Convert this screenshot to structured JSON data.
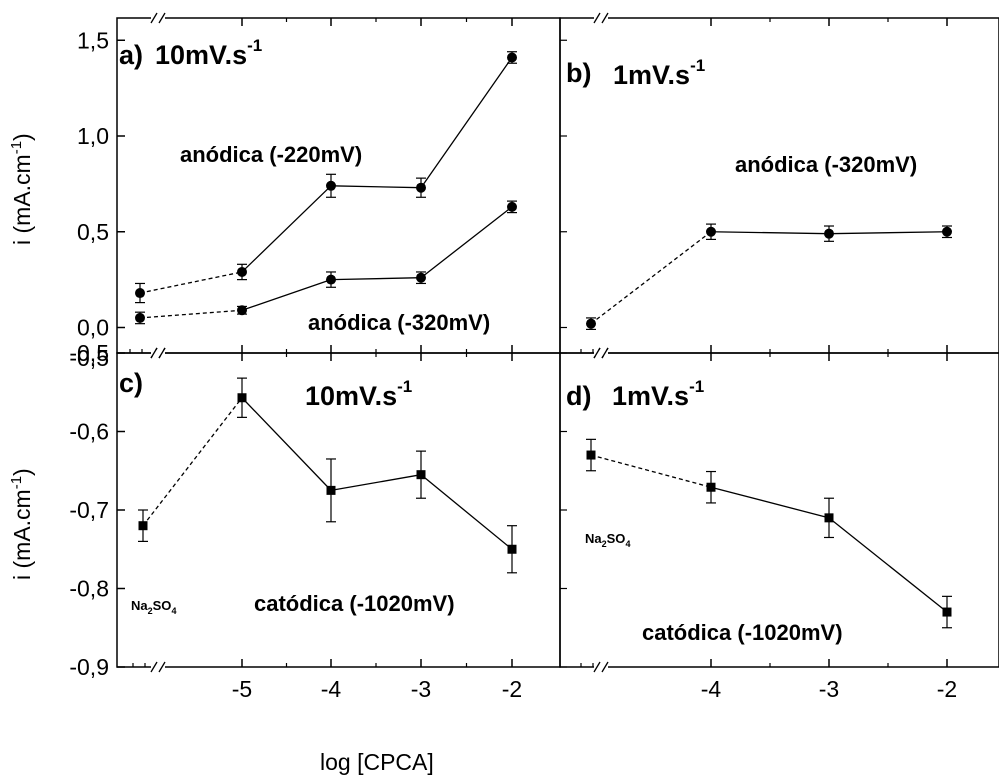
{
  "x_axis_label": "log [CPCA]",
  "y_axis_label_main": "i (mA.cm",
  "y_axis_label_sup": "-1",
  "y_axis_label_close": ")",
  "chart_data": [
    {
      "panel": "a",
      "type": "line",
      "rate_label": "10mV.s",
      "rate_sup": "-1",
      "ylim": [
        -0.02,
        1.6
      ],
      "yticks": [
        0.0,
        0.5,
        1.0,
        1.5
      ],
      "ytick_labels": [
        "0,0",
        "0,5",
        "1,0",
        "1,5"
      ],
      "top_extra_label": "",
      "x_ticks": [
        -5,
        -4,
        -3,
        -2
      ],
      "x_axis_break": true,
      "series": [
        {
          "name": "anódica (-220mV)",
          "marker": "circle",
          "points": [
            {
              "x": "Na2SO4",
              "y": 0.18,
              "err": 0.05
            },
            {
              "x": -5,
              "y": 0.29,
              "err": 0.04
            },
            {
              "x": -4,
              "y": 0.74,
              "err": 0.06
            },
            {
              "x": -3,
              "y": 0.73,
              "err": 0.05
            },
            {
              "x": -2,
              "y": 1.41,
              "err": 0.03
            }
          ]
        },
        {
          "name": "anódica (-320mV)",
          "marker": "circle",
          "points": [
            {
              "x": "Na2SO4",
              "y": 0.05,
              "err": 0.03
            },
            {
              "x": -5,
              "y": 0.09,
              "err": 0.02
            },
            {
              "x": -4,
              "y": 0.25,
              "err": 0.04
            },
            {
              "x": -3,
              "y": 0.26,
              "err": 0.03
            },
            {
              "x": -2,
              "y": 0.63,
              "err": 0.03
            }
          ]
        }
      ],
      "annotations": [
        "anódica (-220mV)",
        "anódica (-320mV)"
      ],
      "na2so4_label": ""
    },
    {
      "panel": "b",
      "type": "line",
      "rate_label": "1mV.s",
      "rate_sup": "-1",
      "ylim": [
        -0.02,
        1.6
      ],
      "x_ticks": [
        -4,
        -3,
        -2
      ],
      "x_axis_break": true,
      "series": [
        {
          "name": "anódica (-320mV)",
          "marker": "circle",
          "points": [
            {
              "x": "Na2SO4",
              "y": 0.02,
              "err": 0.03
            },
            {
              "x": -4,
              "y": 0.5,
              "err": 0.04
            },
            {
              "x": -3,
              "y": 0.49,
              "err": 0.04
            },
            {
              "x": -2,
              "y": 0.5,
              "err": 0.03
            }
          ]
        }
      ],
      "annotations": [
        "anódica (-320mV)"
      ],
      "na2so4_label": ""
    },
    {
      "panel": "c",
      "type": "line",
      "rate_label": "10mV.s",
      "rate_sup": "-1",
      "ylim": [
        -0.9,
        -0.5
      ],
      "yticks": [
        -0.9,
        -0.8,
        -0.7,
        -0.6,
        -0.5
      ],
      "ytick_labels": [
        "-0,9",
        "-0,8",
        "-0,7",
        "-0,6",
        "-0,5"
      ],
      "x_ticks": [
        -5,
        -4,
        -3,
        -2
      ],
      "x_tick_labels": [
        "-5",
        "-4",
        "-3",
        "-2"
      ],
      "x_axis_break": true,
      "series": [
        {
          "name": "catódica (-1020mV)",
          "marker": "square",
          "points": [
            {
              "x": "Na2SO4",
              "y": -0.72,
              "err": 0.02
            },
            {
              "x": -5,
              "y": -0.557,
              "err": 0.025
            },
            {
              "x": -4,
              "y": -0.675,
              "err": 0.04
            },
            {
              "x": -3,
              "y": -0.655,
              "err": 0.03
            },
            {
              "x": -2,
              "y": -0.75,
              "err": 0.03
            }
          ]
        }
      ],
      "annotations": [
        "catódica (-1020mV)"
      ],
      "na2so4_label": "Na2SO4"
    },
    {
      "panel": "d",
      "type": "line",
      "rate_label": "1mV.s",
      "rate_sup": "-1",
      "ylim": [
        -0.9,
        -0.5
      ],
      "x_ticks": [
        -4,
        -3,
        -2
      ],
      "x_tick_labels": [
        "-4",
        "-3",
        "-2"
      ],
      "x_axis_break": true,
      "series": [
        {
          "name": "catódica (-1020mV)",
          "marker": "square",
          "points": [
            {
              "x": "Na2SO4",
              "y": -0.63,
              "err": 0.02
            },
            {
              "x": -4,
              "y": -0.671,
              "err": 0.02
            },
            {
              "x": -3,
              "y": -0.71,
              "err": 0.025
            },
            {
              "x": -2,
              "y": -0.83,
              "err": 0.02
            }
          ]
        }
      ],
      "annotations": [
        "catódica (-1020mV)"
      ],
      "na2so4_label": "Na2SO4"
    }
  ],
  "panel_c_top_tick_label": "-0,5"
}
